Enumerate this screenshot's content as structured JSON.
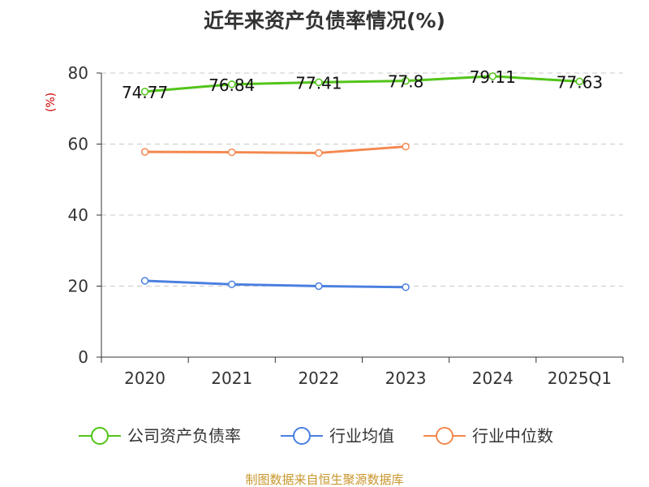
{
  "title": "近年来资产负债率情况(%)",
  "source": "制图数据来自恒生聚源数据库",
  "chart_data": {
    "type": "line",
    "title": "近年来资产负债率情况(%)",
    "ylabel": "(%)",
    "xlabel": "",
    "categories": [
      "2020",
      "2021",
      "2022",
      "2023",
      "2024",
      "2025Q1"
    ],
    "ylim": [
      0,
      80
    ],
    "yticks": [
      0,
      20,
      40,
      60,
      80
    ],
    "ytick_labels": [
      "0",
      "20",
      "40",
      "60",
      "80"
    ],
    "grid": "horizontal dashed",
    "legend": "bottom",
    "series": [
      {
        "name": "公司资产负债率",
        "color": "#52c41a",
        "values": [
          74.77,
          76.84,
          77.41,
          77.8,
          79.11,
          77.63
        ],
        "labels": [
          "74.77",
          "76.84",
          "77.41",
          "77.8",
          "79.11",
          "77.63"
        ]
      },
      {
        "name": "行业均值",
        "color": "#4a7fe0",
        "values": [
          21.5,
          20.5,
          20.0,
          19.7,
          null,
          null
        ]
      },
      {
        "name": "行业中位数",
        "color": "#f4884f",
        "values": [
          57.8,
          57.7,
          57.5,
          59.3,
          null,
          null
        ]
      }
    ]
  }
}
